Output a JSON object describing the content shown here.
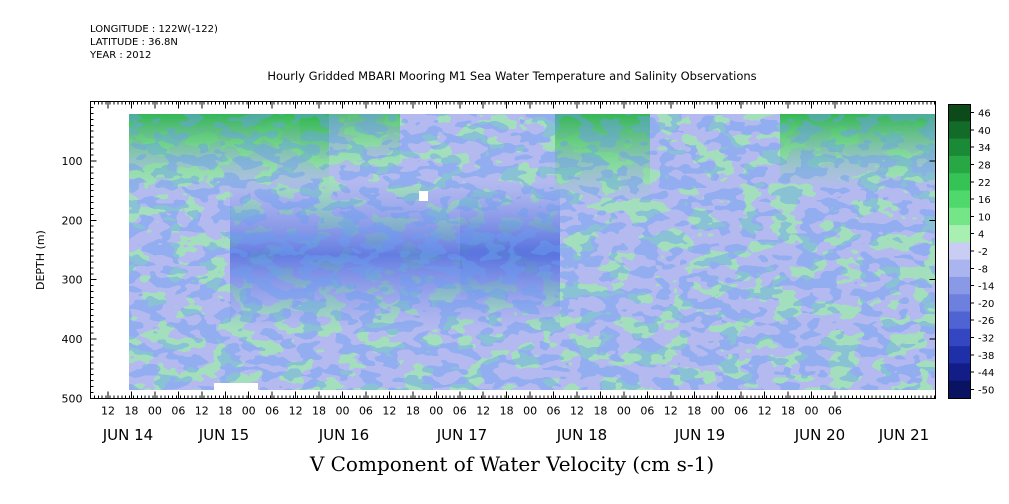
{
  "header": {
    "longitude": "LONGITUDE : 122W(-122)",
    "latitude": "LATITUDE : 36.8N",
    "year": "YEAR : 2012"
  },
  "chart_data": {
    "type": "heatmap",
    "title": "Hourly Gridded MBARI Mooring M1 Sea Water Temperature and Salinity Observations",
    "xlabel": "V Component of Water Velocity (cm s-1)",
    "ylabel": "DEPTH (m)",
    "y_ticks": [
      100,
      200,
      300,
      400,
      500
    ],
    "y_range_m": [
      0,
      500
    ],
    "y_inverted": true,
    "x_hour_labels": [
      "12",
      "18",
      "00",
      "06",
      "12",
      "18",
      "00",
      "06",
      "12",
      "18",
      "00",
      "06",
      "12",
      "18",
      "00",
      "06",
      "12",
      "18",
      "00",
      "06",
      "12",
      "18",
      "00",
      "06",
      "12",
      "18",
      "00",
      "06",
      "12",
      "18",
      "00",
      "06"
    ],
    "x_day_labels": [
      "JUN 14",
      "JUN 15",
      "JUN 16",
      "JUN 17",
      "JUN 18",
      "JUN 19",
      "JUN 20",
      "JUN 21"
    ],
    "colorbar_levels": [
      "46",
      "40",
      "34",
      "28",
      "22",
      "16",
      "10",
      "4",
      "-2",
      "-8",
      "-14",
      "-20",
      "-26",
      "-32",
      "-38",
      "-44",
      "-50"
    ],
    "colorbar_colors": [
      "#0d4a1a",
      "#136b2a",
      "#1b8a36",
      "#27a845",
      "#35c356",
      "#4fd86b",
      "#74e688",
      "#a8f0b2",
      "#c9cdf3",
      "#aab4ee",
      "#8a99e6",
      "#6d80de",
      "#4f63d3",
      "#3446c2",
      "#1f2fa7",
      "#121d87",
      "#0a1262"
    ],
    "data_summary": {
      "positive_green": "near-surface (20-120 m), JUN 14, late JUN 17-18 and JUN 20-21",
      "negative_blue": "mid-depth 150-350 m, JUN 15-17, minimum about -26",
      "data_depth_range_m": [
        20,
        485
      ]
    }
  }
}
